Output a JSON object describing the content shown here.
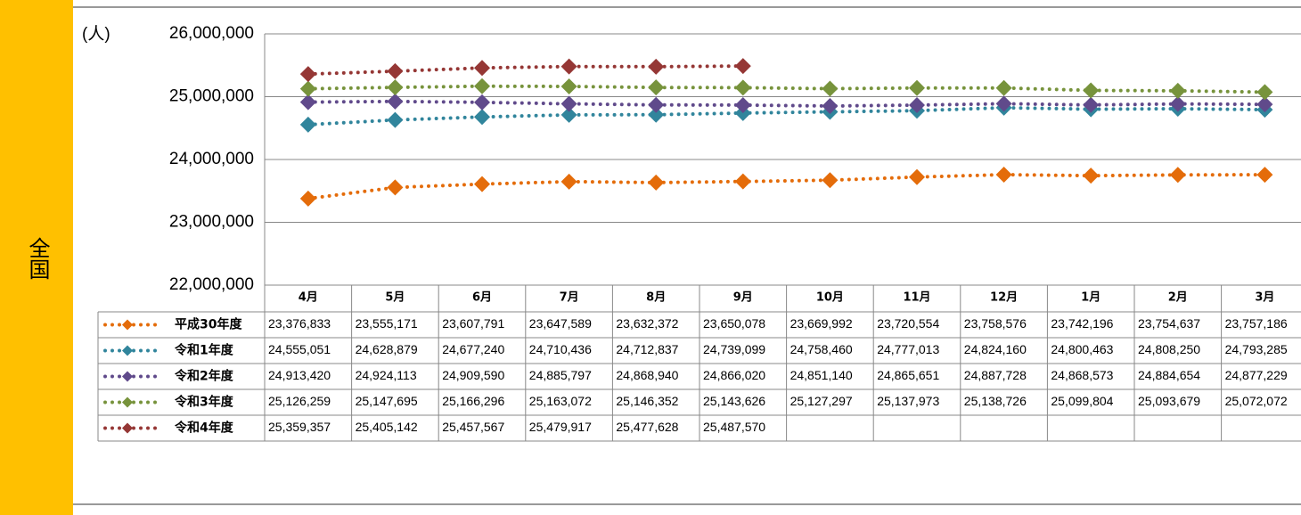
{
  "region_label": "全国",
  "chart_data": {
    "type": "line",
    "y_label": "(人)",
    "categories": [
      "4月",
      "5月",
      "6月",
      "7月",
      "8月",
      "9月",
      "10月",
      "11月",
      "12月",
      "1月",
      "2月",
      "3月"
    ],
    "ylim": [
      22000000,
      26000000
    ],
    "yticks": [
      {
        "value": 22000000,
        "label": "22,000,000"
      },
      {
        "value": 23000000,
        "label": "23,000,000"
      },
      {
        "value": 24000000,
        "label": "24,000,000"
      },
      {
        "value": 25000000,
        "label": "25,000,000"
      },
      {
        "value": 26000000,
        "label": "26,000,000"
      }
    ],
    "grid": true,
    "series": [
      {
        "name": "平成30年度",
        "color": "#e46c0a",
        "values": [
          23376833,
          23555171,
          23607791,
          23647589,
          23632372,
          23650078,
          23669992,
          23720554,
          23758576,
          23742196,
          23754637,
          23757186
        ],
        "value_labels": [
          "23,376,833",
          "23,555,171",
          "23,607,791",
          "23,647,589",
          "23,632,372",
          "23,650,078",
          "23,669,992",
          "23,720,554",
          "23,758,576",
          "23,742,196",
          "23,754,637",
          "23,757,186"
        ]
      },
      {
        "name": "令和1年度",
        "color": "#31859c",
        "values": [
          24555051,
          24628879,
          24677240,
          24710436,
          24712837,
          24739099,
          24758460,
          24777013,
          24824160,
          24800463,
          24808250,
          24793285
        ],
        "value_labels": [
          "24,555,051",
          "24,628,879",
          "24,677,240",
          "24,710,436",
          "24,712,837",
          "24,739,099",
          "24,758,460",
          "24,777,013",
          "24,824,160",
          "24,800,463",
          "24,808,250",
          "24,793,285"
        ]
      },
      {
        "name": "令和2年度",
        "color": "#604a8b",
        "values": [
          24913420,
          24924113,
          24909590,
          24885797,
          24868940,
          24866020,
          24851140,
          24865651,
          24887728,
          24868573,
          24884654,
          24877229
        ],
        "value_labels": [
          "24,913,420",
          "24,924,113",
          "24,909,590",
          "24,885,797",
          "24,868,940",
          "24,866,020",
          "24,851,140",
          "24,865,651",
          "24,887,728",
          "24,868,573",
          "24,884,654",
          "24,877,229"
        ]
      },
      {
        "name": "令和3年度",
        "color": "#77933c",
        "values": [
          25126259,
          25147695,
          25166296,
          25163072,
          25146352,
          25143626,
          25127297,
          25137973,
          25138726,
          25099804,
          25093679,
          25072072
        ],
        "value_labels": [
          "25,126,259",
          "25,147,695",
          "25,166,296",
          "25,163,072",
          "25,146,352",
          "25,143,626",
          "25,127,297",
          "25,137,973",
          "25,138,726",
          "25,099,804",
          "25,093,679",
          "25,072,072"
        ]
      },
      {
        "name": "令和4年度",
        "color": "#953735",
        "values": [
          25359357,
          25405142,
          25457567,
          25479917,
          25477628,
          25487570,
          null,
          null,
          null,
          null,
          null,
          null
        ],
        "value_labels": [
          "25,359,357",
          "25,405,142",
          "25,457,567",
          "25,479,917",
          "25,477,628",
          "25,487,570",
          null,
          null,
          null,
          null,
          null,
          null
        ]
      }
    ]
  }
}
